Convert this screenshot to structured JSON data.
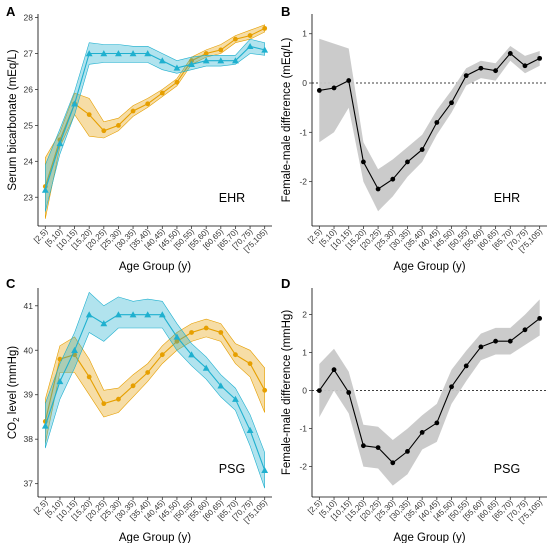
{
  "colors": {
    "female": "#e69f00",
    "male": "#1fb0cf",
    "difference": "#000000",
    "ribbon": "#c8c8c8"
  },
  "chart_data": [
    {
      "panel": "A",
      "type": "line",
      "annotation": "EHR",
      "xlabel": "Age Group (y)",
      "ylabel": "Serum bicarbonate (mEq/L)",
      "categories": [
        "[2,5)",
        "[5,10)",
        "[10,15)",
        "[15,20)",
        "[20,25)",
        "[25,30)",
        "[30,35)",
        "[35,40)",
        "[40,45)",
        "[45,50)",
        "[50,55)",
        "[55,60)",
        "[60,65)",
        "[65,70)",
        "[70,75)",
        "[75,105)"
      ],
      "ylim": [
        22.2,
        28.1
      ],
      "yticks": [
        23,
        24,
        25,
        26,
        27,
        28
      ],
      "grid": false,
      "series": [
        {
          "marker": "circle",
          "color": "#e69f00",
          "values": [
            23.3,
            24.6,
            25.6,
            25.3,
            24.85,
            25.0,
            25.4,
            25.6,
            25.9,
            26.2,
            26.8,
            27.0,
            27.1,
            27.4,
            27.5,
            27.7
          ],
          "lower": [
            22.4,
            24.4,
            25.3,
            24.7,
            24.65,
            24.85,
            25.25,
            25.5,
            25.8,
            26.1,
            26.7,
            26.9,
            27.0,
            27.3,
            27.4,
            27.6
          ],
          "upper": [
            24.1,
            24.8,
            25.9,
            25.75,
            25.1,
            25.2,
            25.55,
            25.75,
            26.0,
            26.3,
            26.9,
            27.1,
            27.25,
            27.5,
            27.65,
            27.8
          ]
        },
        {
          "marker": "triangle",
          "color": "#1fb0cf",
          "values": [
            23.2,
            24.5,
            25.6,
            27.0,
            27.0,
            27.0,
            27.0,
            27.0,
            26.8,
            26.6,
            26.7,
            26.8,
            26.8,
            26.8,
            27.2,
            27.1
          ],
          "lower": [
            22.6,
            24.2,
            25.3,
            26.7,
            26.75,
            26.75,
            26.75,
            26.75,
            26.55,
            26.45,
            26.55,
            26.65,
            26.65,
            26.7,
            27.0,
            26.95
          ],
          "upper": [
            23.9,
            24.9,
            25.95,
            27.3,
            27.25,
            27.25,
            27.2,
            27.2,
            27.0,
            26.8,
            26.9,
            26.95,
            26.95,
            26.95,
            27.4,
            27.3
          ]
        }
      ]
    },
    {
      "panel": "B",
      "type": "line",
      "annotation": "EHR",
      "xlabel": "Age Group (y)",
      "ylabel": "Female-male difference (mEq/L)",
      "categories": [
        "[2,5)",
        "[5,10)",
        "[10,15)",
        "[15,20)",
        "[20,25)",
        "[25,30)",
        "[30,35)",
        "[35,40)",
        "[40,45)",
        "[45,50)",
        "[50,55)",
        "[55,60)",
        "[60,65)",
        "[65,70)",
        "[70,75)",
        "[75,105)"
      ],
      "ylim": [
        -2.9,
        1.4
      ],
      "yticks": [
        -2,
        -1,
        0,
        1
      ],
      "reference_line": 0,
      "grid": false,
      "series": [
        {
          "marker": "circle",
          "color": "#000000",
          "values": [
            -0.15,
            -0.1,
            0.05,
            -1.6,
            -2.15,
            -1.95,
            -1.6,
            -1.35,
            -0.8,
            -0.4,
            0.15,
            0.3,
            0.25,
            0.6,
            0.35,
            0.5
          ],
          "lower": [
            -1.2,
            -1.0,
            -0.5,
            -2.0,
            -2.6,
            -2.3,
            -1.9,
            -1.6,
            -1.05,
            -0.6,
            -0.05,
            0.1,
            0.05,
            0.45,
            0.2,
            0.35
          ],
          "upper": [
            0.9,
            0.8,
            0.7,
            -1.2,
            -1.75,
            -1.55,
            -1.3,
            -1.05,
            -0.55,
            -0.15,
            0.3,
            0.45,
            0.4,
            0.75,
            0.55,
            0.65
          ]
        }
      ]
    },
    {
      "panel": "C",
      "type": "line",
      "annotation": "PSG",
      "xlabel": "Age Group (y)",
      "ylabel": "CO",
      "ylabel_sub": "2",
      "ylabel_suffix": " level (mmHg)",
      "categories": [
        "[2,5)",
        "[5,10)",
        "[10,15)",
        "[15,20)",
        "[20,25)",
        "[25,30)",
        "[30,35)",
        "[35,40)",
        "[40,45)",
        "[45,50)",
        "[50,55)",
        "[55,60)",
        "[60,65)",
        "[65,70)",
        "[70,75)",
        "[75,105)"
      ],
      "ylim": [
        36.7,
        41.4
      ],
      "yticks": [
        37,
        38,
        39,
        40,
        41
      ],
      "grid": false,
      "series": [
        {
          "marker": "circle",
          "color": "#e69f00",
          "values": [
            38.4,
            39.8,
            39.9,
            39.4,
            38.8,
            38.9,
            39.2,
            39.5,
            39.9,
            40.2,
            40.4,
            40.5,
            40.4,
            39.9,
            39.7,
            39.1
          ],
          "lower": [
            37.9,
            39.5,
            39.5,
            39.0,
            38.5,
            38.6,
            38.95,
            39.3,
            39.7,
            40.0,
            40.2,
            40.3,
            40.2,
            39.7,
            39.4,
            38.6
          ],
          "upper": [
            38.9,
            40.1,
            40.3,
            39.8,
            39.1,
            39.15,
            39.45,
            39.7,
            40.1,
            40.4,
            40.6,
            40.7,
            40.6,
            40.15,
            40.0,
            39.6
          ]
        },
        {
          "marker": "triangle",
          "color": "#1fb0cf",
          "values": [
            38.3,
            39.3,
            40.0,
            40.8,
            40.6,
            40.8,
            40.8,
            40.8,
            40.8,
            40.3,
            39.9,
            39.6,
            39.2,
            38.9,
            38.2,
            37.3
          ],
          "lower": [
            37.8,
            38.9,
            39.6,
            40.4,
            40.2,
            40.5,
            40.5,
            40.5,
            40.5,
            40.0,
            39.65,
            39.35,
            38.95,
            38.65,
            37.85,
            36.9
          ],
          "upper": [
            38.8,
            39.7,
            40.4,
            41.3,
            41.0,
            41.2,
            41.1,
            41.15,
            41.1,
            40.6,
            40.15,
            39.85,
            39.45,
            39.15,
            38.55,
            37.7
          ]
        }
      ]
    },
    {
      "panel": "D",
      "type": "line",
      "annotation": "PSG",
      "xlabel": "Age Group (y)",
      "ylabel": "Female-male difference (mmHg)",
      "categories": [
        "[2,5)",
        "[5,10)",
        "[10,15)",
        "[15,20)",
        "[20,25)",
        "[25,30)",
        "[30,35)",
        "[35,40)",
        "[40,45)",
        "[45,50)",
        "[50,55)",
        "[55,60)",
        "[60,65)",
        "[65,70)",
        "[70,75)",
        "[75,105)"
      ],
      "ylim": [
        -2.8,
        2.7
      ],
      "yticks": [
        -2,
        -1,
        0,
        1,
        2
      ],
      "reference_line": 0,
      "grid": false,
      "series": [
        {
          "marker": "circle",
          "color": "#000000",
          "values": [
            0.0,
            0.55,
            -0.05,
            -1.45,
            -1.5,
            -1.9,
            -1.6,
            -1.1,
            -0.85,
            0.1,
            0.65,
            1.15,
            1.3,
            1.3,
            1.6,
            1.9
          ],
          "lower": [
            -0.7,
            0.0,
            -0.6,
            -2.0,
            -2.05,
            -2.5,
            -2.2,
            -1.55,
            -1.35,
            -0.35,
            0.25,
            0.8,
            0.95,
            0.95,
            1.2,
            1.45
          ],
          "upper": [
            0.7,
            1.1,
            0.5,
            -0.9,
            -0.95,
            -1.3,
            -1.0,
            -0.65,
            -0.35,
            0.55,
            1.05,
            1.5,
            1.65,
            1.65,
            2.0,
            2.4
          ]
        }
      ]
    }
  ]
}
